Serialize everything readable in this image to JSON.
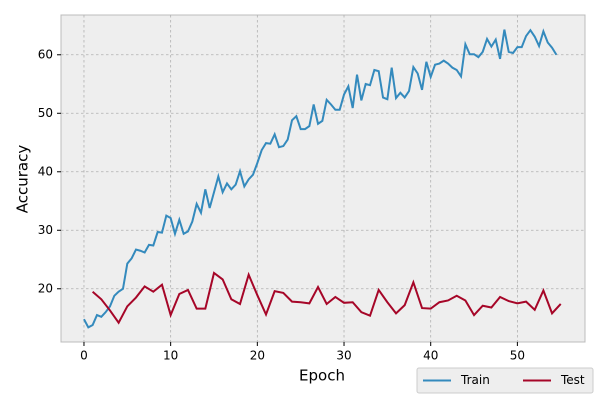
{
  "chart_data": {
    "type": "line",
    "xlabel": "Epoch",
    "ylabel": "Accuracy",
    "xlim": [
      -2.65,
      57.8
    ],
    "ylim": [
      10.9,
      66.8
    ],
    "xticks": [
      0,
      10,
      20,
      30,
      40,
      50
    ],
    "yticks": [
      20,
      30,
      40,
      50,
      60
    ],
    "grid": true,
    "legend": "lower right",
    "series": [
      {
        "name": "Train",
        "color": "#348ABD",
        "x": [
          0,
          0.5,
          1,
          1.5,
          2,
          2.5,
          3,
          3.5,
          4,
          4.5,
          5,
          5.5,
          6,
          6.5,
          7,
          7.5,
          8,
          8.5,
          9,
          9.5,
          10,
          10.5,
          11,
          11.5,
          12,
          12.5,
          13,
          13.5,
          14,
          14.5,
          15,
          15.5,
          16,
          16.5,
          17,
          17.5,
          18,
          18.5,
          19,
          19.5,
          20,
          20.5,
          21,
          21.5,
          22,
          22.5,
          23,
          23.5,
          24,
          24.5,
          25,
          25.5,
          26,
          26.5,
          27,
          27.5,
          28,
          28.5,
          29,
          29.5,
          30,
          30.5,
          31,
          31.5,
          32,
          32.5,
          33,
          33.5,
          34,
          34.5,
          35,
          35.5,
          36,
          36.5,
          37,
          37.5,
          38,
          38.5,
          39,
          39.5,
          40,
          40.5,
          41,
          41.5,
          42,
          42.5,
          43,
          43.5,
          44,
          44.5,
          45,
          45.5,
          46,
          46.5,
          47,
          47.5,
          48,
          48.5,
          49,
          49.5,
          50,
          50.5,
          51,
          51.5,
          52,
          52.5,
          53,
          53.5,
          54,
          54.5
        ],
        "values": [
          14.8,
          13.4,
          13.8,
          15.5,
          15.2,
          16,
          17,
          18.8,
          19.5,
          20,
          24.3,
          25.2,
          26.7,
          26.5,
          26.2,
          27.5,
          27.4,
          29.7,
          29.6,
          32.5,
          32.1,
          29.4,
          31.8,
          29.4,
          29.8,
          31.5,
          34.5,
          33,
          37,
          33.8,
          36.5,
          39.2,
          36.5,
          38,
          37,
          37.8,
          40.1,
          37.5,
          38.7,
          39.5,
          41.5,
          43.7,
          44.9,
          44.8,
          46.4,
          44.2,
          44.4,
          45.5,
          48.8,
          49.5,
          47.3,
          47.3,
          47.8,
          51.5,
          48.2,
          48.7,
          52.3,
          51.5,
          50.6,
          50.6,
          53.2,
          54.6,
          50.9,
          56.6,
          52.2,
          55,
          54.8,
          57.4,
          57.2,
          52.7,
          52.4,
          57.8,
          52.6,
          53.5,
          52.7,
          53.8,
          57.9,
          56.8,
          54,
          58.8,
          56.2,
          58.3,
          58.5,
          59,
          58.5,
          57.8,
          57.4,
          56.3,
          61.8,
          60.1,
          60.1,
          59.6,
          60.5,
          62.7,
          61.4,
          62.6,
          59.3,
          64.3,
          60.5,
          60.3,
          61.3,
          61.3,
          63.2,
          64.2,
          63.1,
          61.5,
          64,
          62.1,
          61.2,
          60
        ]
      },
      {
        "name": "Test",
        "color": "#A60628",
        "x": [
          1,
          2,
          3,
          4,
          5,
          6,
          7,
          8,
          9,
          10,
          11,
          12,
          13,
          14,
          15,
          16,
          17,
          18,
          19,
          20,
          21,
          22,
          23,
          24,
          25,
          26,
          27,
          28,
          29,
          30,
          31,
          32,
          33,
          34,
          35,
          36,
          37,
          38,
          39,
          40,
          41,
          42,
          43,
          44,
          45,
          46,
          47,
          48,
          49,
          50,
          51,
          52,
          53,
          54,
          55
        ],
        "values": [
          19.5,
          18.2,
          16.3,
          14.2,
          17,
          18.5,
          20.4,
          19.5,
          20.7,
          15.5,
          19.1,
          19.8,
          16.6,
          16.6,
          22.7,
          21.6,
          18.2,
          17.4,
          22.4,
          18.9,
          15.6,
          19.6,
          19.3,
          17.8,
          17.7,
          17.5,
          20.3,
          17.4,
          18.6,
          17.6,
          17.7,
          16,
          15.4,
          19.8,
          17.7,
          15.8,
          17.2,
          21.1,
          16.7,
          16.6,
          17.7,
          18,
          18.8,
          18,
          15.5,
          17.1,
          16.8,
          18.6,
          17.9,
          17.5,
          17.8,
          16.4,
          19.7,
          15.8,
          17.4
        ]
      }
    ]
  }
}
